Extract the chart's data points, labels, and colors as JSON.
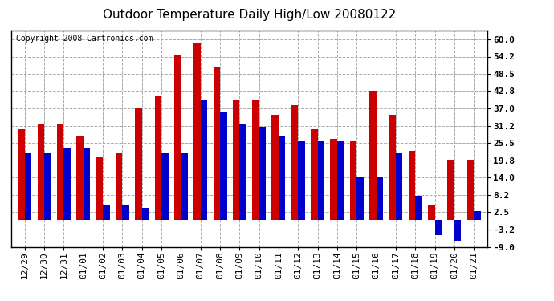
{
  "title": "Outdoor Temperature Daily High/Low 20080122",
  "copyright": "Copyright 2008 Cartronics.com",
  "dates": [
    "12/29",
    "12/30",
    "12/31",
    "01/01",
    "01/02",
    "01/03",
    "01/04",
    "01/05",
    "01/06",
    "01/07",
    "01/08",
    "01/09",
    "01/10",
    "01/11",
    "01/12",
    "01/13",
    "01/14",
    "01/15",
    "01/16",
    "01/17",
    "01/18",
    "01/19",
    "01/20",
    "01/21"
  ],
  "highs": [
    30,
    32,
    32,
    28,
    21,
    22,
    37,
    41,
    55,
    59,
    51,
    40,
    40,
    35,
    38,
    30,
    27,
    26,
    43,
    35,
    23,
    5,
    20,
    20
  ],
  "lows": [
    22,
    22,
    24,
    24,
    5,
    5,
    4,
    22,
    22,
    40,
    36,
    32,
    31,
    28,
    26,
    26,
    26,
    14,
    14,
    22,
    8,
    -5,
    -7,
    3
  ],
  "high_color": "#cc0000",
  "low_color": "#0000cc",
  "background_color": "#ffffff",
  "grid_color": "#aaaaaa",
  "yticks": [
    60.0,
    54.2,
    48.5,
    42.8,
    37.0,
    31.2,
    25.5,
    19.8,
    14.0,
    8.2,
    2.5,
    -3.2,
    -9.0
  ],
  "ylim": [
    -9.0,
    63.0
  ],
  "bar_width": 0.35,
  "title_fontsize": 11,
  "tick_fontsize": 8,
  "copyright_fontsize": 7,
  "fig_width": 6.9,
  "fig_height": 3.75,
  "dpi": 100
}
